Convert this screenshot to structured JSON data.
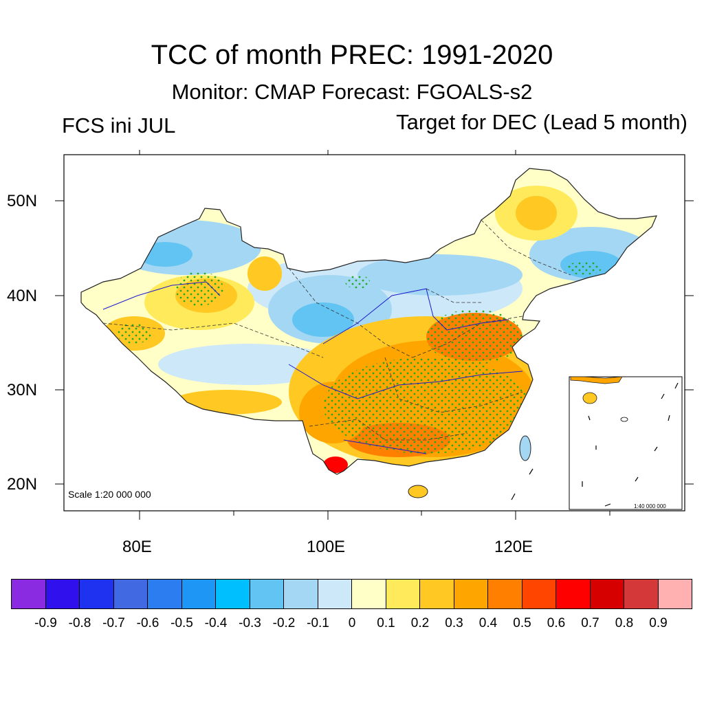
{
  "header": {
    "title": "TCC of month PREC: 1991-2020",
    "subtitle": "Monitor: CMAP   Forecast: FGOALS-s2",
    "left_label": "FCS ini JUL",
    "right_label": "Target for DEC (Lead 5 month)"
  },
  "map": {
    "lat_labels": [
      "50N",
      "40N",
      "30N",
      "20N"
    ],
    "lon_labels": [
      "80E",
      "100E",
      "120E"
    ],
    "scale_main": "Scale 1:20 000 000",
    "scale_inset": "1:40 000 000",
    "stipple_meaning": "significant",
    "colors": {
      "frame": "#000000",
      "boundary": "#333333",
      "river": "#1a1acc",
      "stipple": "#22aa22"
    }
  },
  "colorbar": {
    "labels": [
      "-0.9",
      "-0.8",
      "-0.7",
      "-0.6",
      "-0.5",
      "-0.4",
      "-0.3",
      "-0.2",
      "-0.1",
      "0",
      "0.1",
      "0.2",
      "0.3",
      "0.4",
      "0.5",
      "0.6",
      "0.7",
      "0.8",
      "0.9"
    ],
    "colors": [
      "#8a2be2",
      "#3011ee",
      "#1e32f0",
      "#4169e1",
      "#2c7ef0",
      "#1e96f6",
      "#00bfff",
      "#61c4f2",
      "#a3d7f4",
      "#cde8f8",
      "#ffffc7",
      "#ffea5c",
      "#ffc823",
      "#ffa500",
      "#ff7f00",
      "#ff4500",
      "#ff0000",
      "#d70000",
      "#d53838",
      "#ffb0b0"
    ]
  }
}
